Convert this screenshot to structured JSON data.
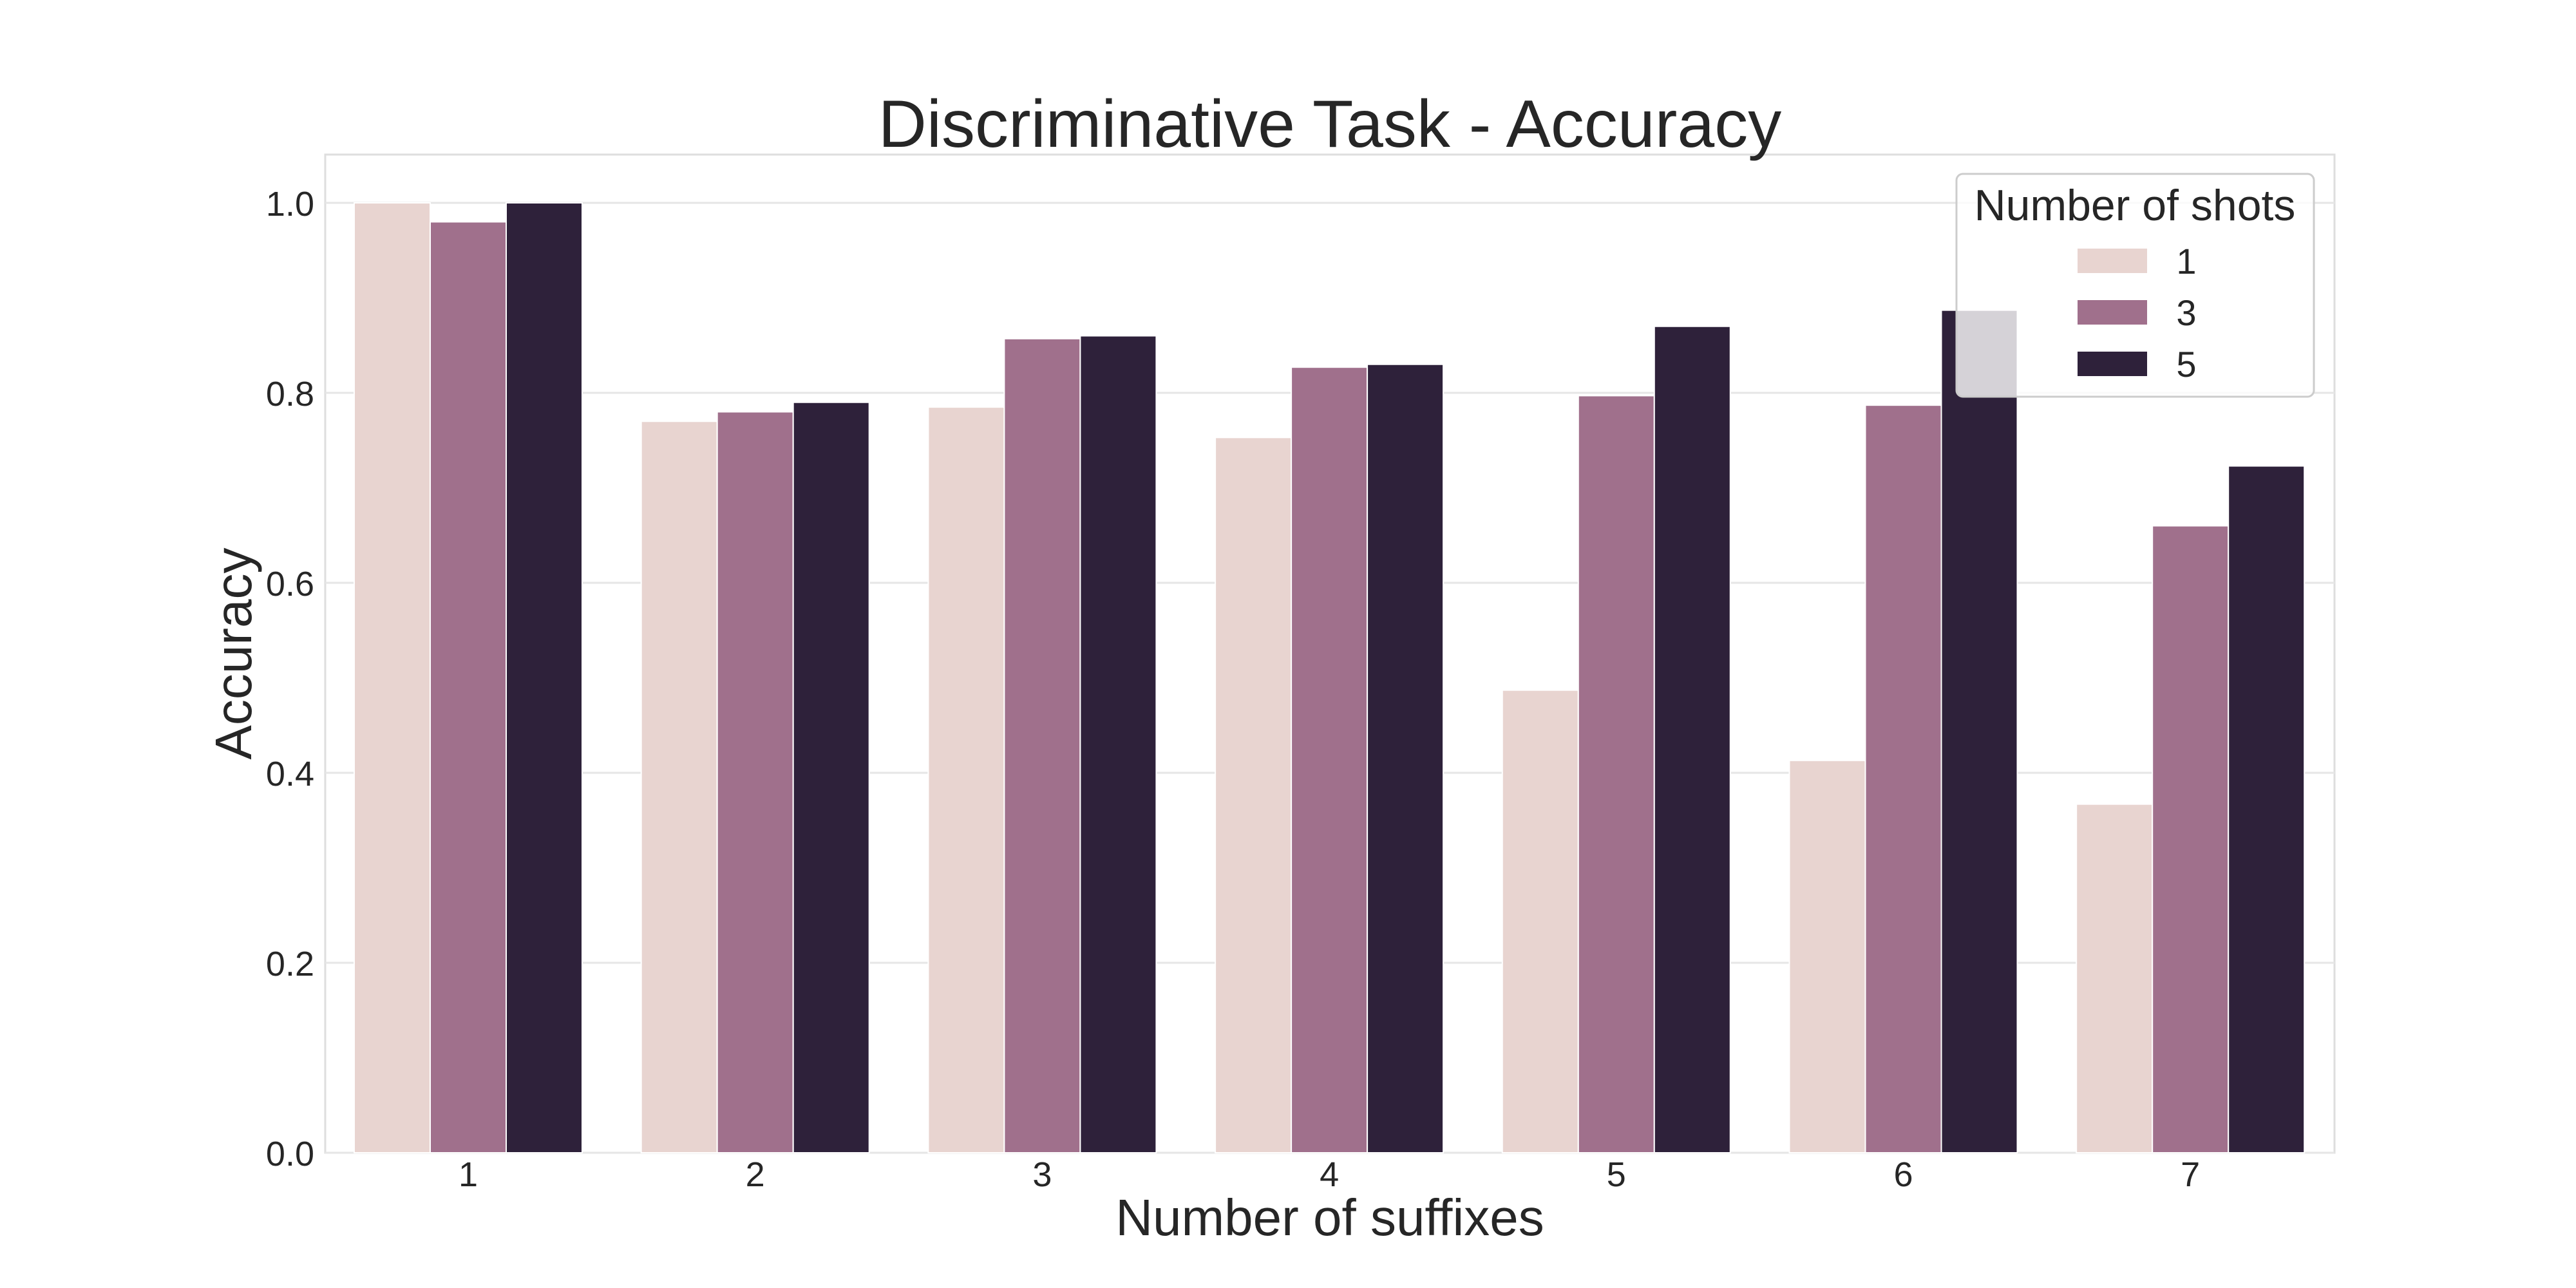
{
  "chart_data": {
    "type": "bar",
    "title": "Discriminative Task - Accuracy",
    "xlabel": "Number of suffixes",
    "ylabel": "Accuracy",
    "categories": [
      "1",
      "2",
      "3",
      "4",
      "5",
      "6",
      "7"
    ],
    "series": [
      {
        "name": "1",
        "color": "#e8d4d0",
        "values": [
          1.0,
          0.77,
          0.785,
          0.753,
          0.487,
          0.413,
          0.367
        ]
      },
      {
        "name": "3",
        "color": "#a0708c",
        "values": [
          0.98,
          0.78,
          0.857,
          0.827,
          0.797,
          0.787,
          0.66
        ]
      },
      {
        "name": "5",
        "color": "#2e213a",
        "values": [
          1.0,
          0.79,
          0.86,
          0.83,
          0.87,
          0.887,
          0.723
        ]
      }
    ],
    "ylim": [
      0,
      1.05
    ],
    "yticks": [
      "0.0",
      "0.2",
      "0.4",
      "0.6",
      "0.8",
      "1.0"
    ],
    "grid": true,
    "legend": {
      "title": "Number of shots",
      "placement": "top-right"
    }
  }
}
